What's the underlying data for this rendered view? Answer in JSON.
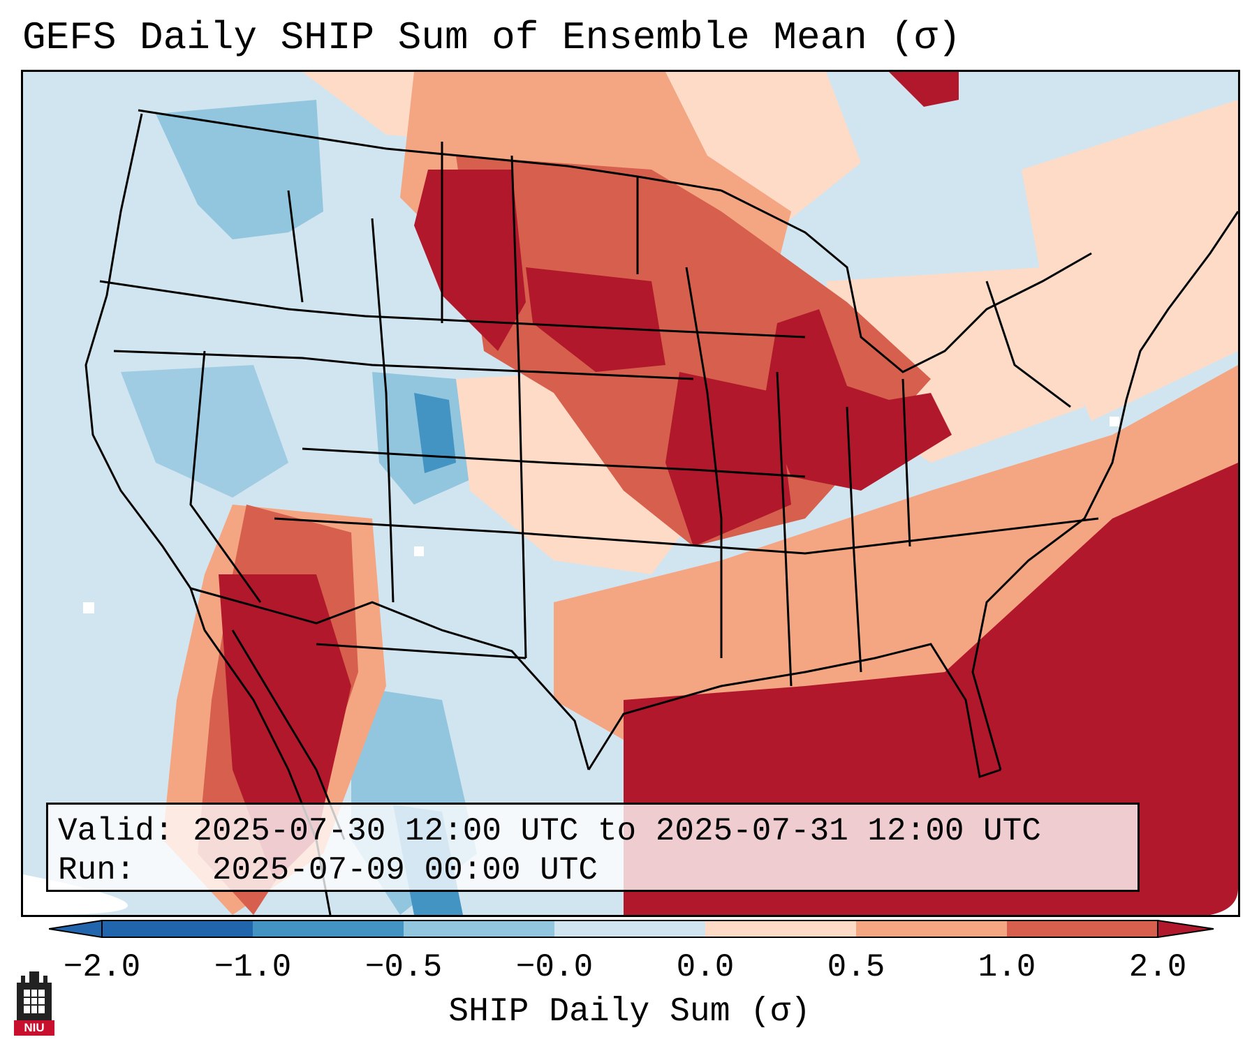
{
  "title": "GEFS Daily SHIP Sum of Ensemble Mean (σ)",
  "info": {
    "valid_label": "Valid:",
    "valid_value": "2025-07-30 12:00 UTC to 2025-07-31 12:00 UTC",
    "run_label": "Run:",
    "run_value": "2025-07-09 00:00 UTC"
  },
  "colorbar": {
    "label": "SHIP Daily Sum (σ)",
    "ticks": [
      "−2.0",
      "−1.0",
      "−0.5",
      "−0.0",
      "0.0",
      "0.5",
      "1.0",
      "2.0"
    ],
    "colors": [
      "#2166ac",
      "#4393c3",
      "#92c5de",
      "#d1e5f0",
      "#fddbc7",
      "#f4a582",
      "#d6604d",
      "#b2182b"
    ],
    "extend_low_color": "#2166ac",
    "extend_high_color": "#b2182b"
  },
  "logo": {
    "text": "NIU",
    "color": "#c8102e"
  },
  "map": {
    "region": "Contiguous United States, northern Mexico and southern Canada",
    "background_color": "#d1e5f0",
    "ocean_outside_color": "#ffffff"
  }
}
